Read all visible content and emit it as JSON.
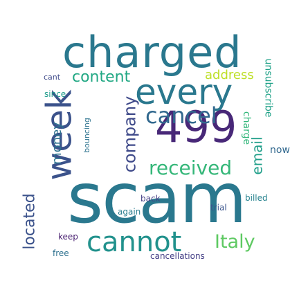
{
  "background": "#ffffff",
  "words": [
    {
      "text": "charged",
      "color": "#2a788e"
    },
    {
      "text": "every",
      "color": "#2a788e"
    },
    {
      "text": "week",
      "color": "#3b528b"
    },
    {
      "text": "scam",
      "color": "#2a788e"
    },
    {
      "text": "cannot",
      "color": "#21918c"
    },
    {
      "text": "499",
      "color": "#482878"
    },
    {
      "text": "cancel",
      "color": "#31688e"
    },
    {
      "text": "company",
      "color": "#3e4989"
    },
    {
      "text": "received",
      "color": "#35b779"
    },
    {
      "text": "content",
      "color": "#22a884"
    },
    {
      "text": "Italy",
      "color": "#5ec962"
    },
    {
      "text": "located",
      "color": "#3b528b"
    },
    {
      "text": "email",
      "color": "#1f9e89"
    },
    {
      "text": "address",
      "color": "#bddf26"
    },
    {
      "text": "cancellations",
      "color": "#433e85"
    },
    {
      "text": "bouncing",
      "color": "#2c728e"
    },
    {
      "text": "back",
      "color": "#433e85"
    },
    {
      "text": "keep",
      "color": "#481f70"
    },
    {
      "text": "cant",
      "color": "#3e4989"
    },
    {
      "text": "unsubscribe",
      "color": "#1fa187"
    },
    {
      "text": "money",
      "color": "#2c728e"
    },
    {
      "text": "billed",
      "color": "#26828e"
    },
    {
      "text": "charge",
      "color": "#32b67a"
    },
    {
      "text": "since",
      "color": "#1e9b8a"
    },
    {
      "text": "now",
      "color": "#31688e"
    },
    {
      "text": "trial",
      "color": "#3a548c"
    },
    {
      "text": "free",
      "color": "#2d708e"
    },
    {
      "text": "again",
      "color": "#287c8e"
    }
  ]
}
